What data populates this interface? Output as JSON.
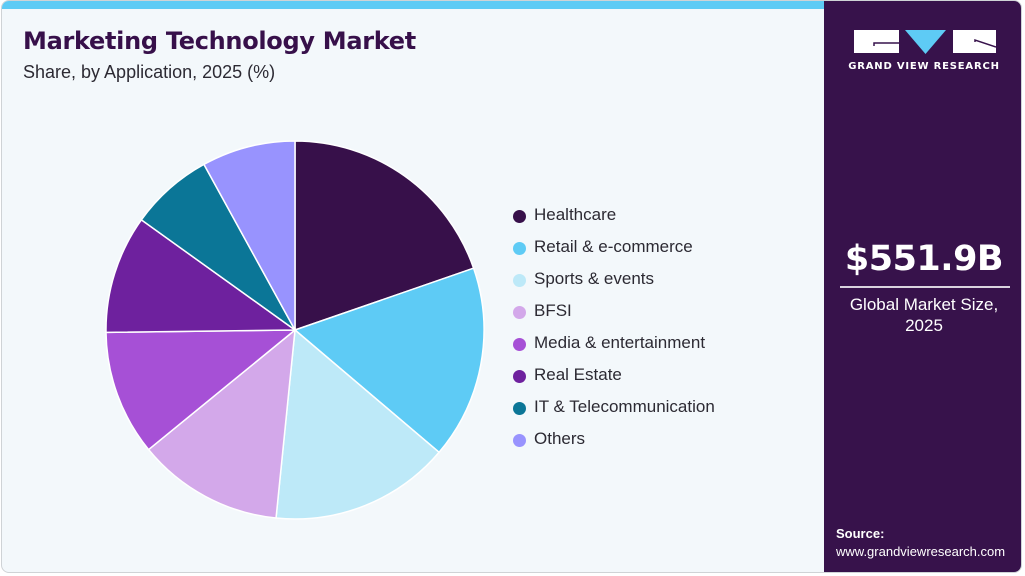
{
  "header": {
    "title": "Marketing Technology Market",
    "subtitle": "Share, by Application, 2025 (%)"
  },
  "colors": {
    "top_bar": "#5ecbf5",
    "title": "#37104a",
    "panel": "#37124b",
    "card_bg": "#f3f8fb"
  },
  "chart_data": {
    "type": "pie",
    "title": "Marketing Technology Market",
    "subtitle": "Share, by Application, 2025 (%)",
    "start_angle_deg": 0,
    "direction": "clockwise",
    "legend_position": "right",
    "categories": [
      "Healthcare",
      "Retail & e-commerce",
      "Sports & events",
      "BFSI",
      "Media & entertainment",
      "Real Estate",
      "IT & Telecommunication",
      "Others"
    ],
    "values": [
      19.7,
      16.5,
      15.4,
      12.5,
      10.7,
      10.1,
      7.1,
      8.0
    ],
    "colors": [
      "#37104a",
      "#5ecbf5",
      "#bde9f8",
      "#d3a8ea",
      "#a650d6",
      "#6e219e",
      "#0b7697",
      "#9893fe"
    ]
  },
  "legend": {
    "items": [
      {
        "label": "Healthcare",
        "color": "#37104a"
      },
      {
        "label": "Retail & e-commerce",
        "color": "#5ecbf5"
      },
      {
        "label": "Sports & events",
        "color": "#bde9f8"
      },
      {
        "label": "BFSI",
        "color": "#d3a8ea"
      },
      {
        "label": "Media & entertainment",
        "color": "#a650d6"
      },
      {
        "label": "Real Estate",
        "color": "#6e219e"
      },
      {
        "label": "IT & Telecommunication",
        "color": "#0b7697"
      },
      {
        "label": "Others",
        "color": "#9893fe"
      }
    ]
  },
  "side_panel": {
    "logo_text": "GRAND VIEW RESEARCH",
    "market_value": "$551.9B",
    "market_label_line1": "Global Market Size,",
    "market_label_line2": "2025",
    "source_label": "Source:",
    "source_url": "www.grandviewresearch.com"
  }
}
